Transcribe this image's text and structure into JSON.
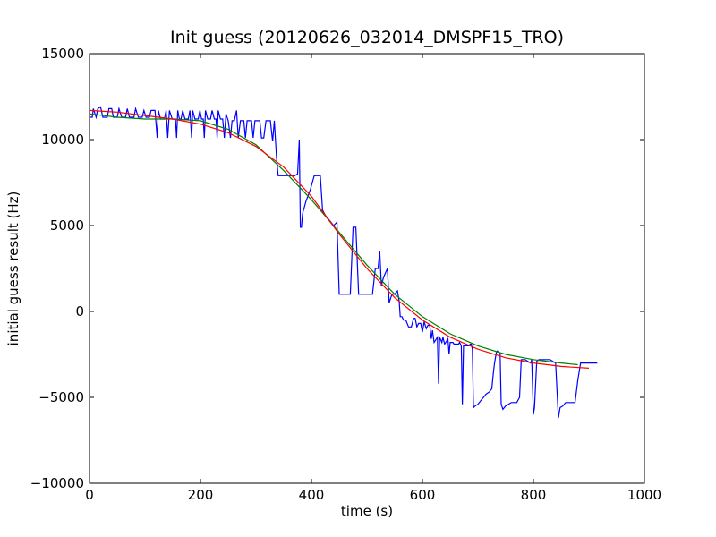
{
  "chart_data": {
    "type": "line",
    "title": "Init guess (20120626_032014_DMSPF15_TRO)",
    "xlabel": "time (s)",
    "ylabel": "initial guess result (Hz)",
    "xlim": [
      0,
      1000
    ],
    "ylim": [
      -10000,
      15000
    ],
    "x_ticks": [
      0,
      200,
      400,
      600,
      800,
      1000
    ],
    "y_ticks": [
      -10000,
      -5000,
      0,
      5000,
      10000,
      15000
    ],
    "x_tick_labels": [
      "0",
      "200",
      "400",
      "600",
      "800",
      "1000"
    ],
    "y_tick_labels": [
      "−10000",
      "−5000",
      "0",
      "5000",
      "10000",
      "15000"
    ],
    "grid": false,
    "series": [
      {
        "color": "#0000ff",
        "points": [
          [
            0,
            11300
          ],
          [
            5,
            11300
          ],
          [
            7,
            11800
          ],
          [
            12,
            11300
          ],
          [
            15,
            11800
          ],
          [
            20,
            11900
          ],
          [
            24,
            11300
          ],
          [
            32,
            11300
          ],
          [
            35,
            11800
          ],
          [
            40,
            11800
          ],
          [
            43,
            11300
          ],
          [
            50,
            11300
          ],
          [
            53,
            11800
          ],
          [
            58,
            11300
          ],
          [
            65,
            11300
          ],
          [
            68,
            11800
          ],
          [
            72,
            11300
          ],
          [
            80,
            11300
          ],
          [
            83,
            11800
          ],
          [
            88,
            11300
          ],
          [
            95,
            11300
          ],
          [
            98,
            11700
          ],
          [
            102,
            11300
          ],
          [
            108,
            11300
          ],
          [
            111,
            11700
          ],
          [
            118,
            11700
          ],
          [
            122,
            10100
          ],
          [
            124,
            11700
          ],
          [
            128,
            11200
          ],
          [
            135,
            11200
          ],
          [
            138,
            11700
          ],
          [
            141,
            10100
          ],
          [
            144,
            11700
          ],
          [
            149,
            11200
          ],
          [
            155,
            11200
          ],
          [
            157,
            10100
          ],
          [
            159,
            11700
          ],
          [
            162,
            11200
          ],
          [
            165,
            11200
          ],
          [
            168,
            11700
          ],
          [
            172,
            11200
          ],
          [
            178,
            11200
          ],
          [
            181,
            11700
          ],
          [
            184,
            10100
          ],
          [
            186,
            11700
          ],
          [
            190,
            11200
          ],
          [
            196,
            11200
          ],
          [
            199,
            11700
          ],
          [
            202,
            11200
          ],
          [
            205,
            11200
          ],
          [
            207,
            10100
          ],
          [
            209,
            11700
          ],
          [
            213,
            11200
          ],
          [
            218,
            11200
          ],
          [
            221,
            11700
          ],
          [
            225,
            11200
          ],
          [
            228,
            11200
          ],
          [
            230,
            10100
          ],
          [
            232,
            11700
          ],
          [
            236,
            11200
          ],
          [
            240,
            11200
          ],
          [
            243,
            10100
          ],
          [
            246,
            11500
          ],
          [
            250,
            11100
          ],
          [
            254,
            10100
          ],
          [
            257,
            11100
          ],
          [
            261,
            11100
          ],
          [
            265,
            11700
          ],
          [
            268,
            10100
          ],
          [
            272,
            11100
          ],
          [
            278,
            11100
          ],
          [
            281,
            10100
          ],
          [
            284,
            11100
          ],
          [
            292,
            11100
          ],
          [
            295,
            10100
          ],
          [
            298,
            11100
          ],
          [
            307,
            11100
          ],
          [
            310,
            10100
          ],
          [
            314,
            10100
          ],
          [
            318,
            11100
          ],
          [
            326,
            11100
          ],
          [
            330,
            9900
          ],
          [
            333,
            11100
          ],
          [
            337,
            9000
          ],
          [
            340,
            7900
          ],
          [
            344,
            7900
          ],
          [
            350,
            7900
          ],
          [
            360,
            7900
          ],
          [
            370,
            7900
          ],
          [
            375,
            8000
          ],
          [
            378,
            10000
          ],
          [
            380,
            4900
          ],
          [
            382,
            4900
          ],
          [
            384,
            5700
          ],
          [
            390,
            6400
          ],
          [
            398,
            7100
          ],
          [
            405,
            7900
          ],
          [
            413,
            7900
          ],
          [
            416,
            7900
          ],
          [
            420,
            5900
          ],
          [
            425,
            5600
          ],
          [
            440,
            5000
          ],
          [
            446,
            5200
          ],
          [
            450,
            1000
          ],
          [
            460,
            1000
          ],
          [
            470,
            1000
          ],
          [
            475,
            4900
          ],
          [
            480,
            4900
          ],
          [
            485,
            1000
          ],
          [
            490,
            1000
          ],
          [
            500,
            1000
          ],
          [
            510,
            1000
          ],
          [
            515,
            2500
          ],
          [
            520,
            2500
          ],
          [
            523,
            3500
          ],
          [
            526,
            1500
          ],
          [
            530,
            2000
          ],
          [
            537,
            2500
          ],
          [
            540,
            500
          ],
          [
            545,
            1000
          ],
          [
            550,
            1000
          ],
          [
            555,
            1200
          ],
          [
            558,
            600
          ],
          [
            560,
            -300
          ],
          [
            563,
            -300
          ],
          [
            566,
            -500
          ],
          [
            570,
            -500
          ],
          [
            575,
            -900
          ],
          [
            580,
            -900
          ],
          [
            584,
            -400
          ],
          [
            587,
            -400
          ],
          [
            590,
            -900
          ],
          [
            593,
            -700
          ],
          [
            597,
            -700
          ],
          [
            600,
            -1200
          ],
          [
            603,
            -600
          ],
          [
            607,
            -1000
          ],
          [
            610,
            -800
          ],
          [
            613,
            -800
          ],
          [
            616,
            -1600
          ],
          [
            618,
            -1100
          ],
          [
            621,
            -1800
          ],
          [
            625,
            -1600
          ],
          [
            627,
            -1500
          ],
          [
            629,
            -4200
          ],
          [
            631,
            -1500
          ],
          [
            635,
            -1800
          ],
          [
            637,
            -1500
          ],
          [
            640,
            -1900
          ],
          [
            646,
            -1600
          ],
          [
            648,
            -2500
          ],
          [
            650,
            -1800
          ],
          [
            655,
            -1800
          ],
          [
            657,
            -1900
          ],
          [
            661,
            -1900
          ],
          [
            665,
            -1900
          ],
          [
            667,
            -1800
          ],
          [
            670,
            -2000
          ],
          [
            672,
            -5400
          ],
          [
            674,
            -2000
          ],
          [
            680,
            -2000
          ],
          [
            684,
            -2000
          ],
          [
            686,
            -1900
          ],
          [
            688,
            -1900
          ],
          [
            690,
            -2200
          ],
          [
            692,
            -5600
          ],
          [
            695,
            -5500
          ],
          [
            700,
            -5400
          ],
          [
            705,
            -5200
          ],
          [
            710,
            -5000
          ],
          [
            715,
            -4800
          ],
          [
            720,
            -4700
          ],
          [
            725,
            -4500
          ],
          [
            728,
            -3500
          ],
          [
            730,
            -3000
          ],
          [
            733,
            -2400
          ],
          [
            735,
            -2300
          ],
          [
            738,
            -2400
          ],
          [
            740,
            -2500
          ],
          [
            742,
            -5400
          ],
          [
            745,
            -5700
          ],
          [
            750,
            -5500
          ],
          [
            755,
            -5400
          ],
          [
            760,
            -5300
          ],
          [
            770,
            -5300
          ],
          [
            775,
            -5000
          ],
          [
            778,
            -2800
          ],
          [
            785,
            -2800
          ],
          [
            790,
            -2900
          ],
          [
            795,
            -3000
          ],
          [
            797,
            -2800
          ],
          [
            800,
            -6000
          ],
          [
            802,
            -5600
          ],
          [
            806,
            -2900
          ],
          [
            810,
            -2800
          ],
          [
            815,
            -2800
          ],
          [
            820,
            -2800
          ],
          [
            830,
            -2800
          ],
          [
            835,
            -2900
          ],
          [
            840,
            -3000
          ],
          [
            845,
            -6200
          ],
          [
            848,
            -5600
          ],
          [
            853,
            -5500
          ],
          [
            858,
            -5300
          ],
          [
            870,
            -5300
          ],
          [
            875,
            -5300
          ],
          [
            880,
            -4000
          ],
          [
            885,
            -3000
          ],
          [
            900,
            -3000
          ],
          [
            915,
            -3000
          ]
        ]
      },
      {
        "color": "#008000",
        "points": [
          [
            0,
            11500
          ],
          [
            50,
            11300
          ],
          [
            100,
            11200
          ],
          [
            150,
            11200
          ],
          [
            200,
            11100
          ],
          [
            250,
            10600
          ],
          [
            300,
            9700
          ],
          [
            350,
            8200
          ],
          [
            400,
            6500
          ],
          [
            450,
            4600
          ],
          [
            500,
            2700
          ],
          [
            550,
            1000
          ],
          [
            600,
            -300
          ],
          [
            650,
            -1300
          ],
          [
            700,
            -2000
          ],
          [
            750,
            -2500
          ],
          [
            800,
            -2800
          ],
          [
            850,
            -3000
          ],
          [
            880,
            -3100
          ]
        ]
      },
      {
        "color": "#ff0000",
        "points": [
          [
            0,
            11700
          ],
          [
            50,
            11600
          ],
          [
            100,
            11400
          ],
          [
            150,
            11200
          ],
          [
            200,
            10900
          ],
          [
            250,
            10400
          ],
          [
            300,
            9600
          ],
          [
            350,
            8400
          ],
          [
            400,
            6700
          ],
          [
            450,
            4500
          ],
          [
            500,
            2500
          ],
          [
            550,
            800
          ],
          [
            600,
            -500
          ],
          [
            650,
            -1500
          ],
          [
            700,
            -2200
          ],
          [
            750,
            -2700
          ],
          [
            800,
            -3000
          ],
          [
            850,
            -3200
          ],
          [
            900,
            -3300
          ]
        ]
      }
    ]
  }
}
